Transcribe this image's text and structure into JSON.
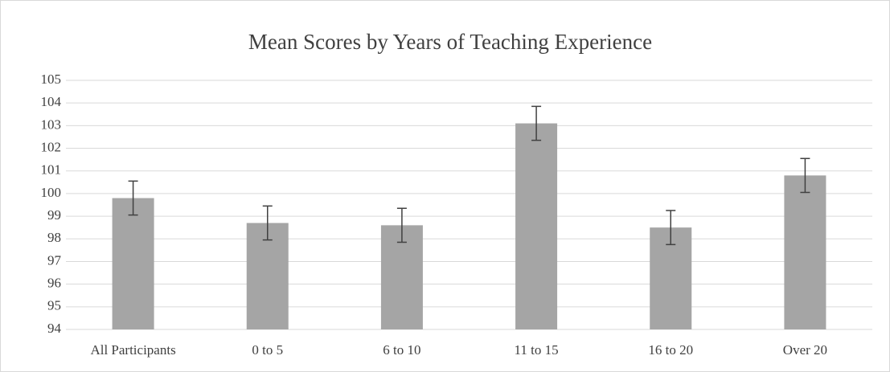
{
  "chart_data": {
    "type": "bar",
    "title": "Mean Scores by Years of Teaching Experience",
    "categories": [
      "All Participants",
      "0 to 5",
      "6 to 10",
      "11 to 15",
      "16 to 20",
      "Over 20"
    ],
    "values": [
      99.8,
      98.7,
      98.6,
      103.1,
      98.5,
      100.8
    ],
    "errors": [
      0.75,
      0.75,
      0.75,
      0.75,
      0.75,
      0.75
    ],
    "color": "#a5a5a5",
    "error_color": "#404040",
    "ylim": [
      94,
      105
    ],
    "yticks": [
      94,
      95,
      96,
      97,
      98,
      99,
      100,
      101,
      102,
      103,
      104,
      105
    ],
    "grid": true
  }
}
